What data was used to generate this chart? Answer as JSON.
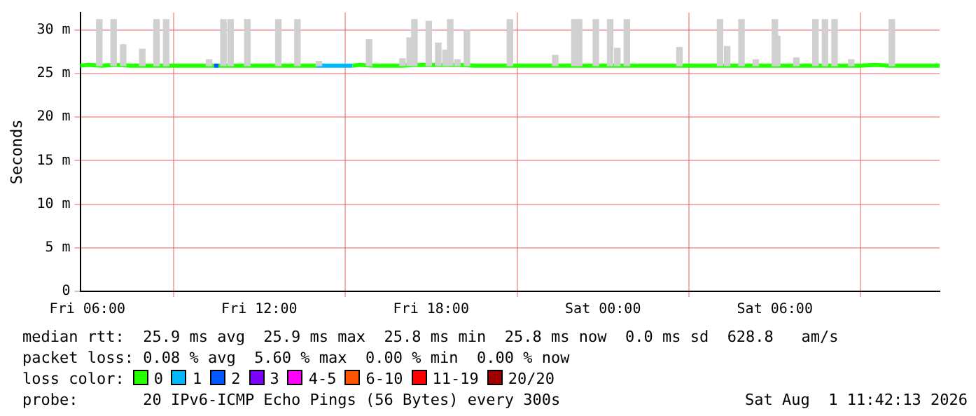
{
  "chart_data": {
    "type": "line",
    "ylabel": "Seconds",
    "xlim": [
      "2026-07-31T05:45",
      "2026-08-01T11:45"
    ],
    "xticks": [
      {
        "value": "2026-07-31T06:00",
        "label": "Fri 06:00"
      },
      {
        "value": "2026-07-31T12:00",
        "label": "Fri 12:00"
      },
      {
        "value": "2026-07-31T18:00",
        "label": "Fri 18:00"
      },
      {
        "value": "2026-08-01T00:00",
        "label": "Sat 00:00"
      },
      {
        "value": "2026-08-01T06:00",
        "label": "Sat 06:00"
      }
    ],
    "ylim": [
      0,
      32
    ],
    "yticks": [
      0,
      {
        "value": 5,
        "label": "5 m"
      },
      {
        "value": 10,
        "label": "10 m"
      },
      {
        "value": 15,
        "label": "15 m"
      },
      {
        "value": 20,
        "label": "20 m"
      },
      {
        "value": 25,
        "label": "25 m"
      },
      {
        "value": 30,
        "label": "30 m"
      }
    ],
    "grid": true,
    "legend": "bottom",
    "legend_title": "loss color:",
    "marker": "none",
    "line_style": "solid",
    "series": [
      {
        "type": "bar",
        "color": "#d0d0d0",
        "x": [
          "2026-07-31T06:25",
          "2026-07-31T06:55",
          "2026-07-31T07:15",
          "2026-07-31T07:55",
          "2026-07-31T08:25",
          "2026-07-31T08:45",
          "2026-07-31T10:15",
          "2026-07-31T10:45",
          "2026-07-31T11:00",
          "2026-07-31T11:35",
          "2026-07-31T12:40",
          "2026-07-31T13:20",
          "2026-07-31T14:05",
          "2026-07-31T15:50",
          "2026-07-31T17:00",
          "2026-07-31T17:15",
          "2026-07-31T17:25",
          "2026-07-31T17:55",
          "2026-07-31T18:15",
          "2026-07-31T18:30",
          "2026-07-31T18:40",
          "2026-07-31T18:55",
          "2026-07-31T19:15",
          "2026-07-31T20:45",
          "2026-07-31T22:20",
          "2026-07-31T23:00",
          "2026-07-31T23:10",
          "2026-07-31T23:45",
          "2026-08-01T00:15",
          "2026-08-01T00:30",
          "2026-08-01T00:50",
          "2026-08-01T02:40",
          "2026-08-01T04:05",
          "2026-08-01T04:20",
          "2026-08-01T04:50",
          "2026-08-01T05:20",
          "2026-08-01T06:00",
          "2026-08-01T06:05",
          "2026-08-01T06:45",
          "2026-08-01T07:25",
          "2026-08-01T07:45",
          "2026-08-01T08:05",
          "2026-08-01T08:40",
          "2026-08-01T10:05"
        ],
        "base": [
          25.9,
          25.9,
          25.9,
          25.9,
          25.9,
          25.9,
          25.9,
          25.9,
          25.9,
          25.9,
          25.9,
          25.9,
          25.9,
          25.9,
          25.9,
          25.9,
          25.9,
          25.9,
          25.9,
          25.9,
          25.9,
          25.9,
          25.9,
          25.9,
          25.9,
          25.9,
          25.9,
          25.9,
          25.9,
          25.9,
          25.9,
          25.9,
          25.9,
          25.9,
          25.9,
          25.9,
          25.9,
          25.9,
          25.9,
          25.9,
          25.9,
          25.9,
          25.9,
          25.9
        ],
        "values": [
          5.3,
          5.3,
          2.4,
          1.9,
          5.3,
          5.3,
          0.7,
          5.3,
          5.3,
          5.3,
          5.3,
          5.3,
          0.5,
          3,
          0.8,
          3.2,
          5.3,
          5.1,
          2.6,
          1.8,
          5.3,
          0.7,
          4.1,
          5.3,
          1.2,
          5.3,
          5.3,
          5.3,
          5.3,
          2,
          5.3,
          2.1,
          5.3,
          2.2,
          5.3,
          0.7,
          5.3,
          3.4,
          0.9,
          5.3,
          5.3,
          5.3,
          0.7,
          5.3
        ]
      },
      {
        "name": "0",
        "color": "#26ff00",
        "x": [
          "2026-07-31T05:45",
          "2026-07-31T06:00",
          "2026-07-31T06:30",
          "2026-07-31T07:00",
          "2026-07-31T07:30",
          "2026-07-31T08:00",
          "2026-07-31T08:30",
          "2026-07-31T09:00",
          "2026-07-31T09:30",
          "2026-07-31T10:00",
          "2026-07-31T10:25",
          "2026-07-31T10:30",
          "2026-07-31T10:35",
          "2026-07-31T11:00",
          "2026-07-31T11:30",
          "2026-07-31T12:00",
          "2026-07-31T12:30",
          "2026-07-31T13:00",
          "2026-07-31T13:30",
          "2026-07-31T14:00",
          "2026-07-31T14:30",
          "2026-07-31T15:15",
          "2026-07-31T15:30",
          "2026-07-31T16:00",
          "2026-07-31T16:30",
          "2026-07-31T17:00",
          "2026-07-31T17:30",
          "2026-07-31T18:00",
          "2026-07-31T18:30",
          "2026-07-31T19:00",
          "2026-07-31T19:30",
          "2026-07-31T20:00",
          "2026-07-31T20:30",
          "2026-07-31T21:00",
          "2026-07-31T21:30",
          "2026-07-31T22:00",
          "2026-07-31T22:30",
          "2026-07-31T23:00",
          "2026-07-31T23:30",
          "2026-08-01T00:00",
          "2026-08-01T00:30",
          "2026-08-01T01:00",
          "2026-08-01T01:30",
          "2026-08-01T02:00",
          "2026-08-01T02:30",
          "2026-08-01T03:00",
          "2026-08-01T03:30",
          "2026-08-01T04:00",
          "2026-08-01T04:30",
          "2026-08-01T05:00",
          "2026-08-01T05:30",
          "2026-08-01T06:00",
          "2026-08-01T06:30",
          "2026-08-01T07:00",
          "2026-08-01T07:30",
          "2026-08-01T08:00",
          "2026-08-01T08:30",
          "2026-08-01T09:00",
          "2026-08-01T09:30",
          "2026-08-01T10:00",
          "2026-08-01T10:30",
          "2026-08-01T11:00",
          "2026-08-01T11:30",
          "2026-08-01T11:45"
        ],
        "values": [
          25.9,
          26,
          25.9,
          26,
          25.9,
          25.9,
          25.9,
          25.9,
          25.9,
          25.9,
          25.9,
          null,
          25.9,
          25.9,
          25.9,
          25.9,
          25.9,
          25.9,
          25.9,
          25.9,
          null,
          25.9,
          26,
          25.9,
          25.9,
          25.9,
          26,
          26,
          26,
          26,
          25.9,
          25.9,
          25.9,
          25.9,
          25.9,
          25.9,
          25.9,
          25.9,
          25.9,
          25.9,
          25.9,
          25.9,
          25.9,
          25.9,
          25.9,
          25.9,
          25.9,
          25.9,
          25.9,
          25.9,
          25.9,
          25.9,
          25.9,
          25.9,
          25.9,
          25.9,
          25.9,
          25.9,
          26,
          25.9,
          25.9,
          25.9,
          25.9,
          25.9
        ]
      },
      {
        "name": "1",
        "color": "#00b8ff",
        "x": [
          "2026-07-31T14:00",
          "2026-07-31T15:15"
        ],
        "values": [
          25.9,
          25.9
        ]
      },
      {
        "name": "2",
        "color": "#0059ff",
        "x": [
          "2026-07-31T10:25",
          "2026-07-31T10:35"
        ],
        "values": [
          25.9,
          25.9
        ]
      },
      {
        "name": "3",
        "color": "#7e00ff"
      },
      {
        "name": "4-5",
        "color": "#ff00ff"
      },
      {
        "name": "6-10",
        "color": "#ff5500"
      },
      {
        "name": "11-19",
        "color": "#ff0000"
      },
      {
        "name": "20/20",
        "color": "#a10000"
      }
    ],
    "annotations": [
      "median rtt:  25.9 ms avg  25.9 ms max  25.8 ms min  25.8 ms now  0.0 ms sd  628.8   am/s",
      "packet loss: 0.08 % avg  5.60 % max  0.00 % min  0.00 % now",
      "probe:       20 IPv6-ICMP Echo Pings (56 Bytes) every 300s",
      "Sat Aug  1 11:42:13 2026"
    ]
  }
}
